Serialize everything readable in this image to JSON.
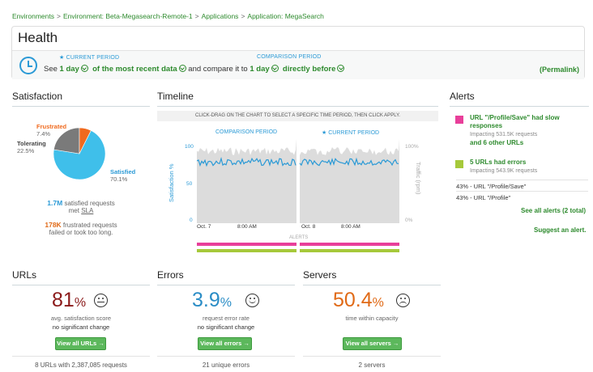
{
  "breadcrumb": [
    "Environments",
    "Environment: Beta-Megasearch-Remote-1",
    "Applications",
    "Application: MegaSearch"
  ],
  "health": {
    "title": "Health",
    "current_period_label": "★ CURRENT PERIOD",
    "comparison_period_label": "COMPARISON PERIOD",
    "see": "See",
    "current_value": "1 day",
    "of_text": "of the most recent data",
    "compare_text": "and compare it to",
    "comparison_value": "1 day",
    "direction": "directly before",
    "permalink": "(Permalink)"
  },
  "satisfaction": {
    "title": "Satisfaction",
    "frustrated_label": "Frustrated",
    "frustrated_pct": "7.4%",
    "tolerating_label": "Tolerating",
    "tolerating_pct": "22.5%",
    "satisfied_label": "Satisfied",
    "satisfied_pct": "70.1%",
    "satisfied_count": "1.7M",
    "satisfied_text": "satisfied requests",
    "met": "met",
    "sla": "SLA",
    "frustrated_count": "178K",
    "frustrated_text": "frustrated requests",
    "frustrated_sub": "failed or took too long.",
    "colors": {
      "satisfied": "#3fbfea",
      "tolerating": "#7a7a7a",
      "frustrated": "#f06a1e"
    }
  },
  "timeline": {
    "title": "Timeline",
    "note": "CLICK-DRAG ON THE CHART TO SELECT A SPECIFIC TIME PERIOD, THEN CLICK APPLY.",
    "comparison_label": "COMPARISON PERIOD",
    "current_label": "★ CURRENT PERIOD",
    "y_left": [
      "100",
      "50",
      "0"
    ],
    "y_right": [
      "100%",
      "0%"
    ],
    "y_left_title": "Satisfaction %",
    "y_right_title": "Traffic (rpm)",
    "x_labels": [
      "Oct. 7",
      "8:00 AM",
      "Oct. 8",
      "8:00 AM"
    ],
    "alerts_label": "ALERTS"
  },
  "alerts": {
    "title": "Alerts",
    "a1_title": "URL \"/Profile/Save\" had slow responses",
    "a1_sub": "Impacting 531.5K requests",
    "a1_more": "and 6 other URLs",
    "a2_title": "5 URLs had errors",
    "a2_sub": "Impacting 543.9K requests",
    "a2_line1": "43% - URL \"/Profile/Save\"",
    "a2_line2": "43% - URL \"/Profile\"",
    "see_all": "See all alerts (2 total)",
    "suggest": "Suggest an alert.",
    "colors": {
      "a1": "#e83f9a",
      "a2": "#a6c93b"
    }
  },
  "urls": {
    "title": "URLs",
    "value": "81",
    "unit": "%",
    "desc": "avg. satisfaction score",
    "change": "no significant change",
    "button": "View all URLs →",
    "footer": "8 URLs with 2,387,085 requests",
    "color": "#8b1a1a"
  },
  "errors": {
    "title": "Errors",
    "value": "3.9",
    "unit": "%",
    "desc": "request error rate",
    "change": "no significant change",
    "button": "View all errors →",
    "footer": "21 unique errors",
    "color": "#2b8dc6"
  },
  "servers": {
    "title": "Servers",
    "value": "50.4",
    "unit": "%",
    "desc": "time within capacity",
    "button": "View all servers →",
    "footer": "2 servers",
    "color": "#e06a17"
  }
}
